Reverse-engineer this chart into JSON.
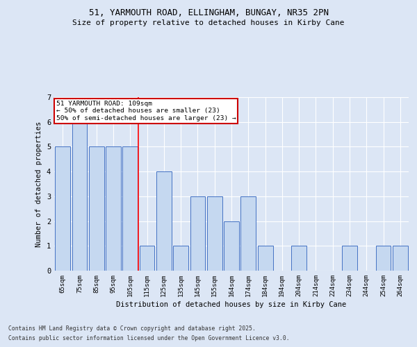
{
  "title_line1": "51, YARMOUTH ROAD, ELLINGHAM, BUNGAY, NR35 2PN",
  "title_line2": "Size of property relative to detached houses in Kirby Cane",
  "xlabel": "Distribution of detached houses by size in Kirby Cane",
  "ylabel": "Number of detached properties",
  "categories": [
    "65sqm",
    "75sqm",
    "85sqm",
    "95sqm",
    "105sqm",
    "115sqm",
    "125sqm",
    "135sqm",
    "145sqm",
    "155sqm",
    "164sqm",
    "174sqm",
    "184sqm",
    "194sqm",
    "204sqm",
    "214sqm",
    "224sqm",
    "234sqm",
    "244sqm",
    "254sqm",
    "264sqm"
  ],
  "values": [
    5,
    6,
    5,
    5,
    5,
    1,
    4,
    1,
    3,
    3,
    2,
    3,
    1,
    0,
    1,
    0,
    0,
    1,
    0,
    1,
    1
  ],
  "bar_color": "#c5d8f0",
  "bar_edge_color": "#4472c4",
  "background_color": "#dce6f5",
  "grid_color": "#ffffff",
  "red_line_x": 4.5,
  "annotation_text": "51 YARMOUTH ROAD: 109sqm\n← 50% of detached houses are smaller (23)\n50% of semi-detached houses are larger (23) →",
  "annotation_box_color": "#ffffff",
  "annotation_box_edge_color": "#cc0000",
  "ylim": [
    0,
    7
  ],
  "yticks": [
    0,
    1,
    2,
    3,
    4,
    5,
    6,
    7
  ],
  "footer_line1": "Contains HM Land Registry data © Crown copyright and database right 2025.",
  "footer_line2": "Contains public sector information licensed under the Open Government Licence v3.0."
}
